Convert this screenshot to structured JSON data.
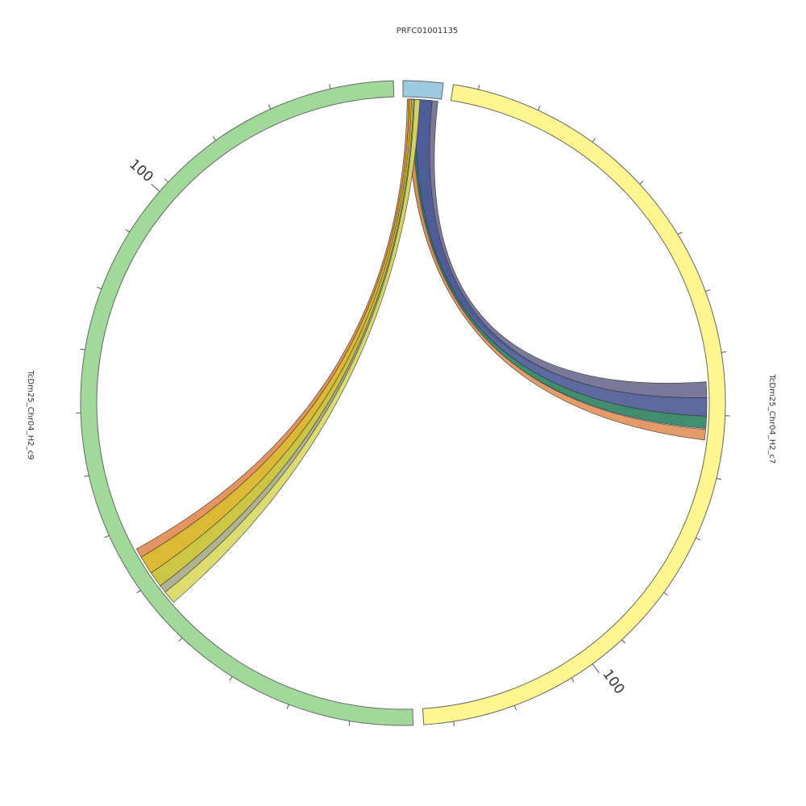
{
  "segments": [
    {
      "label": "PRFC01001135"
    },
    {
      "label": "TcDm25_Chr04_H2_c7",
      "tick_label": "100"
    },
    {
      "label": "TcDm25_Chr04_H2_c9",
      "tick_label": "100"
    }
  ]
}
